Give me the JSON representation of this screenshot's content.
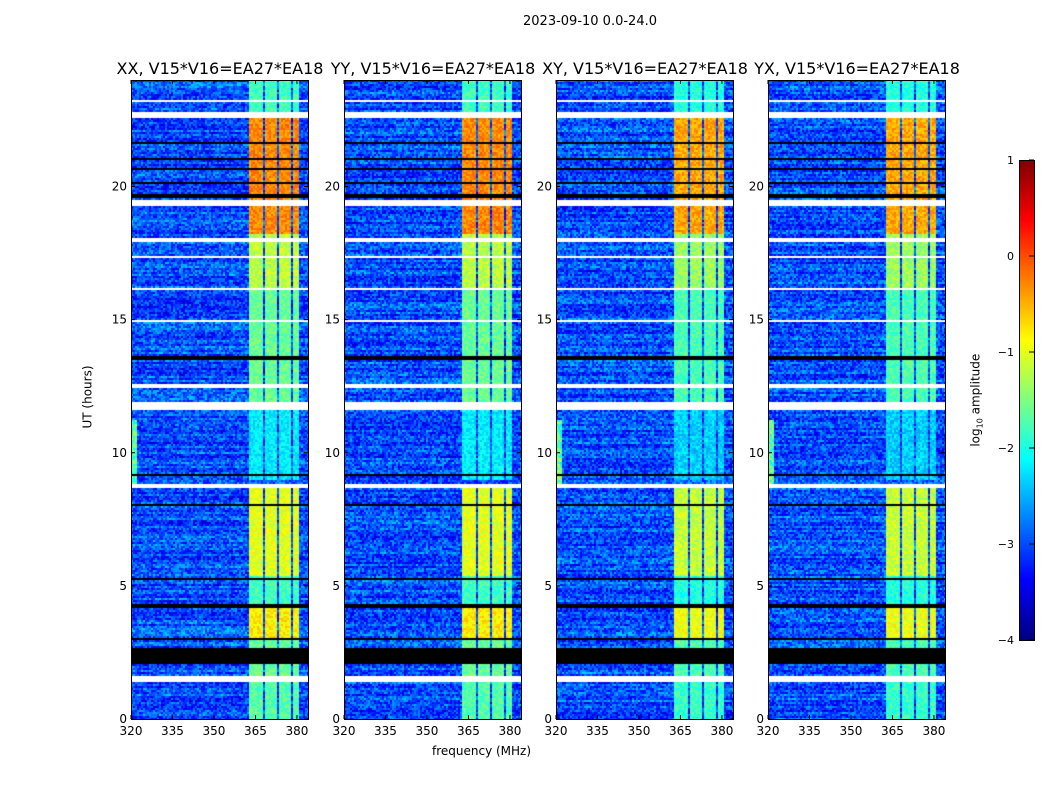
{
  "chart_data": {
    "type": "heatmap",
    "title": "2023-09-10 0.0-24.0",
    "panels": [
      {
        "title": "XX, V15*V16=EA27*EA18"
      },
      {
        "title": "YY, V15*V16=EA27*EA18"
      },
      {
        "title": "XY, V15*V16=EA27*EA18"
      },
      {
        "title": "YX, V15*V16=EA27*EA18"
      }
    ],
    "xlabel": "frequency (MHz)",
    "ylabel": "UT (hours)",
    "xlim": [
      320,
      384
    ],
    "ylim": [
      0,
      24
    ],
    "xticks": [
      320,
      335,
      350,
      365,
      380
    ],
    "yticks": [
      0,
      5,
      10,
      15,
      20
    ],
    "colorbar": {
      "label": "log10 amplitude",
      "label_main": "log",
      "label_sub": "10",
      "label_rest": " amplitude",
      "range": [
        -4,
        1
      ],
      "ticks": [
        1,
        0,
        -1,
        -2,
        -3,
        -4
      ],
      "colormap": "jet"
    },
    "background_level": -3.0,
    "bright_band_mhz": [
      363,
      381
    ],
    "bright_band_gaps_mhz": [
      [
        367.5,
        368.5
      ],
      [
        372.5,
        373.5
      ],
      [
        377.5,
        378.5
      ]
    ],
    "bright_band_levels": [
      {
        "ut": [
          0,
          1.4
        ],
        "value": -1.7
      },
      {
        "ut": [
          1.6,
          3.0
        ],
        "value": -1.6
      },
      {
        "ut": [
          3.0,
          4.2
        ],
        "value": -0.8
      },
      {
        "ut": [
          4.2,
          5.4
        ],
        "value": -1.8
      },
      {
        "ut": [
          5.4,
          8.7
        ],
        "value": -1.0
      },
      {
        "ut": [
          9,
          11.6
        ],
        "value": -2.2
      },
      {
        "ut": [
          11.9,
          16.2
        ],
        "value": -1.6
      },
      {
        "ut": [
          16.2,
          18.2
        ],
        "value": -1.2
      },
      {
        "ut": [
          18.2,
          22.6
        ],
        "value": -0.3
      },
      {
        "ut": [
          22.6,
          24
        ],
        "value": -1.8
      }
    ],
    "flagged_white_ut": [
      [
        1.4,
        1.6
      ],
      [
        4.45,
        4.5
      ],
      [
        5.5,
        5.55
      ],
      [
        8.7,
        8.8
      ],
      [
        10.3,
        10.35
      ],
      [
        11.6,
        11.9
      ],
      [
        12.45,
        12.55
      ],
      [
        14.9,
        14.95
      ],
      [
        16.1,
        16.2
      ],
      [
        17.35,
        17.4
      ],
      [
        17.95,
        18.05
      ],
      [
        19.3,
        19.5
      ],
      [
        21.2,
        21.25
      ],
      [
        22.6,
        22.8
      ],
      [
        23.2,
        23.25
      ]
    ],
    "flagged_black_ut": [
      [
        2.1,
        2.7
      ],
      [
        1.9,
        1.95
      ],
      [
        3.0,
        3.05
      ],
      [
        4.2,
        4.3
      ],
      [
        5.2,
        5.3
      ],
      [
        8.0,
        8.05
      ],
      [
        9.1,
        9.2
      ],
      [
        13.5,
        13.6
      ],
      [
        14.2,
        14.25
      ],
      [
        17.0,
        17.05
      ],
      [
        19.6,
        19.7
      ],
      [
        20.1,
        20.2
      ],
      [
        20.6,
        20.7
      ],
      [
        21.0,
        21.1
      ],
      [
        21.6,
        21.7
      ],
      [
        22.1,
        22.15
      ]
    ],
    "rfi_low_freq_ut": [
      8.8,
      11.2
    ]
  }
}
